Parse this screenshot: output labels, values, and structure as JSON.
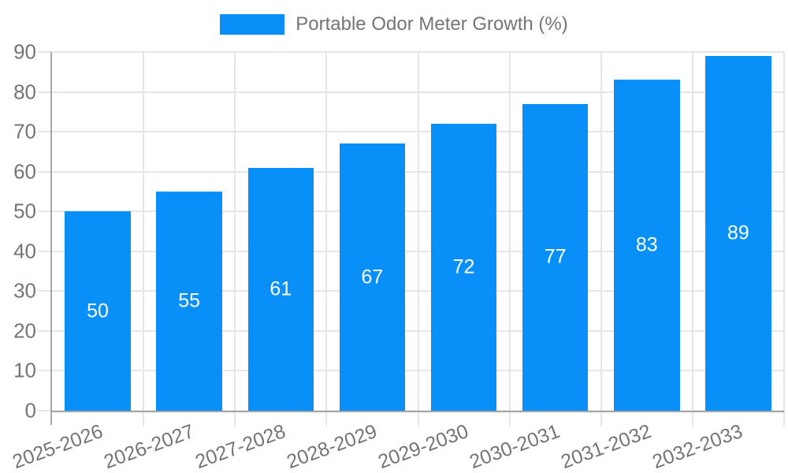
{
  "chart_data": {
    "type": "bar",
    "title": "Portable Odor Meter Growth (%)",
    "categories": [
      "2025-2026",
      "2026-2027",
      "2027-2028",
      "2028-2029",
      "2029-2030",
      "2030-2031",
      "2031-2032",
      "2032-2033"
    ],
    "values": [
      50,
      55,
      61,
      67,
      72,
      77,
      83,
      89
    ],
    "yticks": [
      0,
      10,
      20,
      30,
      40,
      50,
      60,
      70,
      80,
      90
    ],
    "ylim": [
      0,
      90
    ],
    "xlabel": "",
    "ylabel": "",
    "grid": true,
    "legend_position": "top",
    "x_label_rotation_deg": -20,
    "bar_value_labels_inside": true
  },
  "colors": {
    "accent": "#0890F8",
    "axis": "#A6A6A6",
    "grid": "#E6E6E6",
    "text": "#757575",
    "bar_label": "#FFFFFF",
    "background": "#FFFFFF"
  }
}
